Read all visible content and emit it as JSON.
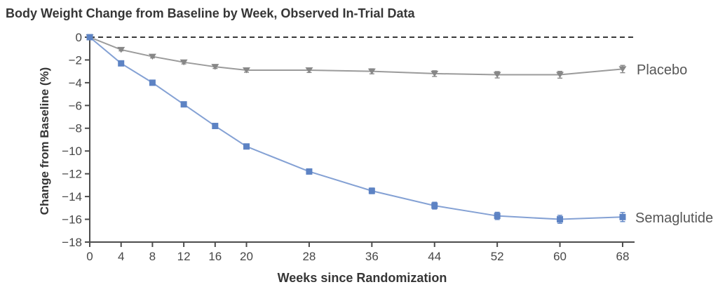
{
  "chart_data": {
    "type": "line",
    "title": "Body Weight Change from Baseline by Week, Observed In-Trial Data",
    "xlabel": "Weeks since Randomization",
    "ylabel": "Change from Baseline (%)",
    "x": [
      0,
      4,
      8,
      12,
      16,
      20,
      28,
      36,
      44,
      52,
      60,
      68
    ],
    "xticks": [
      0,
      4,
      8,
      12,
      16,
      20,
      28,
      36,
      44,
      52,
      60,
      68
    ],
    "yticks": [
      0,
      -2,
      -4,
      -6,
      -8,
      -10,
      -12,
      -14,
      -16,
      -18
    ],
    "ylim": [
      -18,
      0
    ],
    "xlim": [
      0,
      69.5
    ],
    "grid": false,
    "zero_reference_line": "dashed",
    "legend_position": "right-of-last-point",
    "colors": {
      "axis": "#4c4c4c",
      "zero_line": "#3a3a3a"
    },
    "series": [
      {
        "name": "Placebo",
        "marker": "triangle-down",
        "marker_color": "#878787",
        "line_color": "#9b9b9b",
        "values": [
          0,
          -1.1,
          -1.7,
          -2.2,
          -2.6,
          -2.9,
          -2.9,
          -3.0,
          -3.2,
          -3.3,
          -3.3,
          -2.8
        ],
        "error": [
          0,
          0.1,
          0.12,
          0.15,
          0.15,
          0.18,
          0.2,
          0.22,
          0.25,
          0.28,
          0.3,
          0.32
        ]
      },
      {
        "name": "Semaglutide",
        "marker": "square",
        "marker_color": "#5d83c4",
        "line_color": "#84a1d4",
        "values": [
          0,
          -2.3,
          -4.0,
          -5.9,
          -7.8,
          -9.6,
          -11.8,
          -13.5,
          -14.8,
          -15.7,
          -16.0,
          -15.8
        ],
        "error": [
          0,
          0.1,
          0.12,
          0.15,
          0.18,
          0.2,
          0.22,
          0.25,
          0.3,
          0.32,
          0.35,
          0.4
        ]
      }
    ]
  }
}
